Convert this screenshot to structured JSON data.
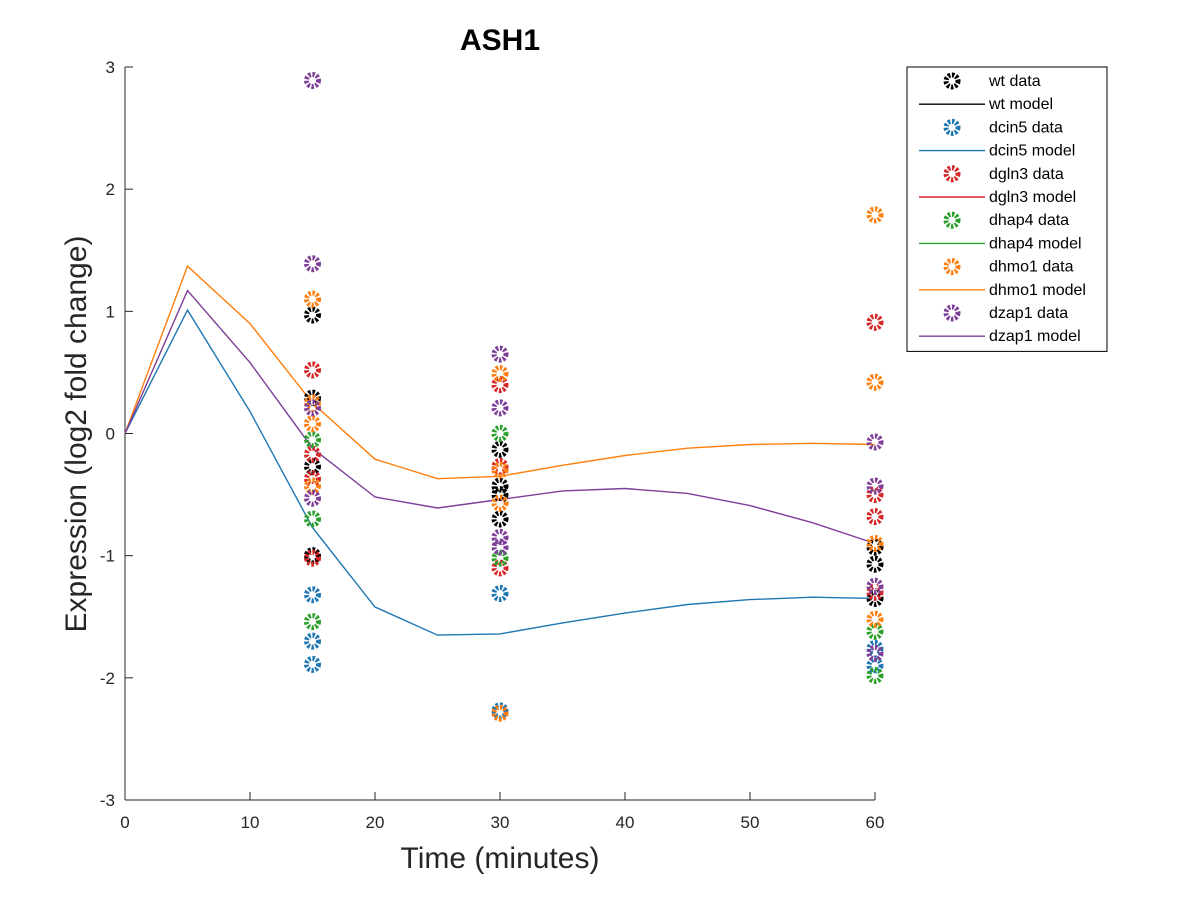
{
  "chart_data": {
    "type": "scatter",
    "title": "ASH1",
    "xlabel": "Time (minutes)",
    "ylabel": "Expression (log2 fold change)",
    "xlim": [
      0,
      60
    ],
    "ylim": [
      -3,
      3
    ],
    "xticks": [
      0,
      10,
      20,
      30,
      40,
      50,
      60
    ],
    "yticks": [
      -3,
      -2,
      -1,
      0,
      1,
      2,
      3
    ],
    "grid": false,
    "legend_position": "top-right",
    "series": [
      {
        "name": "wt data",
        "kind": "data",
        "color": "#000000",
        "points": [
          [
            15,
            0.97
          ],
          [
            15,
            0.29
          ],
          [
            15,
            -0.27
          ],
          [
            15,
            -1.0
          ],
          [
            30,
            -0.13
          ],
          [
            30,
            -0.43
          ],
          [
            30,
            -0.5
          ],
          [
            30,
            -0.7
          ],
          [
            60,
            -0.93
          ],
          [
            60,
            -1.07
          ],
          [
            60,
            -1.35
          ]
        ]
      },
      {
        "name": "wt model",
        "kind": "model",
        "color": "#000000",
        "points": []
      },
      {
        "name": "dcin5 data",
        "kind": "data",
        "color": "#1f77b4",
        "points": [
          [
            15,
            -1.32
          ],
          [
            15,
            -1.7
          ],
          [
            15,
            -1.89
          ],
          [
            30,
            -1.31
          ],
          [
            30,
            -2.27
          ],
          [
            60,
            -1.76
          ],
          [
            60,
            -1.9
          ]
        ]
      },
      {
        "name": "dcin5 model",
        "kind": "model",
        "color": "#1f77b4",
        "points": [
          [
            0,
            0
          ],
          [
            5,
            1.01
          ],
          [
            10,
            0.18
          ],
          [
            15,
            -0.77
          ],
          [
            20,
            -1.42
          ],
          [
            25,
            -1.65
          ],
          [
            30,
            -1.64
          ],
          [
            35,
            -1.55
          ],
          [
            40,
            -1.47
          ],
          [
            45,
            -1.4
          ],
          [
            50,
            -1.36
          ],
          [
            55,
            -1.34
          ],
          [
            60,
            -1.35
          ]
        ]
      },
      {
        "name": "dgln3 data",
        "kind": "data",
        "color": "#d62728",
        "points": [
          [
            15,
            0.52
          ],
          [
            15,
            -0.17
          ],
          [
            15,
            -0.37
          ],
          [
            15,
            -1.02
          ],
          [
            30,
            0.4
          ],
          [
            30,
            -0.27
          ],
          [
            30,
            -1.1
          ],
          [
            60,
            0.91
          ],
          [
            60,
            -0.5
          ],
          [
            60,
            -0.68
          ],
          [
            60,
            -1.3
          ]
        ]
      },
      {
        "name": "dgln3 model",
        "kind": "model",
        "color": "#d62728",
        "points": []
      },
      {
        "name": "dhap4 data",
        "kind": "data",
        "color": "#2ca02c",
        "points": [
          [
            15,
            -0.05
          ],
          [
            15,
            -0.7
          ],
          [
            15,
            -1.54
          ],
          [
            30,
            0.0
          ],
          [
            30,
            -1.02
          ],
          [
            60,
            -1.62
          ],
          [
            60,
            -1.98
          ]
        ]
      },
      {
        "name": "dhap4 model",
        "kind": "model",
        "color": "#2ca02c",
        "points": []
      },
      {
        "name": "dhmo1 data",
        "kind": "data",
        "color": "#ff7f0e",
        "points": [
          [
            15,
            1.1
          ],
          [
            15,
            0.25
          ],
          [
            15,
            0.08
          ],
          [
            15,
            -0.43
          ],
          [
            30,
            0.49
          ],
          [
            30,
            -0.3
          ],
          [
            30,
            -0.57
          ],
          [
            30,
            -2.29
          ],
          [
            60,
            1.79
          ],
          [
            60,
            0.42
          ],
          [
            60,
            -0.9
          ],
          [
            60,
            -1.52
          ]
        ]
      },
      {
        "name": "dhmo1 model",
        "kind": "model",
        "color": "#ff7f0e",
        "points": [
          [
            0,
            0
          ],
          [
            5,
            1.37
          ],
          [
            10,
            0.9
          ],
          [
            15,
            0.25
          ],
          [
            20,
            -0.21
          ],
          [
            25,
            -0.37
          ],
          [
            30,
            -0.35
          ],
          [
            35,
            -0.26
          ],
          [
            40,
            -0.18
          ],
          [
            45,
            -0.12
          ],
          [
            50,
            -0.09
          ],
          [
            55,
            -0.08
          ],
          [
            60,
            -0.09
          ]
        ]
      },
      {
        "name": "dzap1 data",
        "kind": "data",
        "color": "#7e3f98",
        "points": [
          [
            15,
            2.89
          ],
          [
            15,
            1.39
          ],
          [
            15,
            0.21
          ],
          [
            15,
            -0.53
          ],
          [
            30,
            0.65
          ],
          [
            30,
            0.21
          ],
          [
            30,
            -0.85
          ],
          [
            30,
            -0.93
          ],
          [
            60,
            -0.07
          ],
          [
            60,
            -0.43
          ],
          [
            60,
            -1.25
          ],
          [
            60,
            -1.8
          ]
        ]
      },
      {
        "name": "dzap1 model",
        "kind": "model",
        "color": "#7e3f98",
        "points": [
          [
            0,
            0
          ],
          [
            5,
            1.17
          ],
          [
            10,
            0.58
          ],
          [
            15,
            -0.12
          ],
          [
            20,
            -0.52
          ],
          [
            25,
            -0.61
          ],
          [
            30,
            -0.54
          ],
          [
            35,
            -0.47
          ],
          [
            40,
            -0.45
          ],
          [
            45,
            -0.49
          ],
          [
            50,
            -0.59
          ],
          [
            55,
            -0.73
          ],
          [
            60,
            -0.9
          ]
        ]
      }
    ]
  }
}
